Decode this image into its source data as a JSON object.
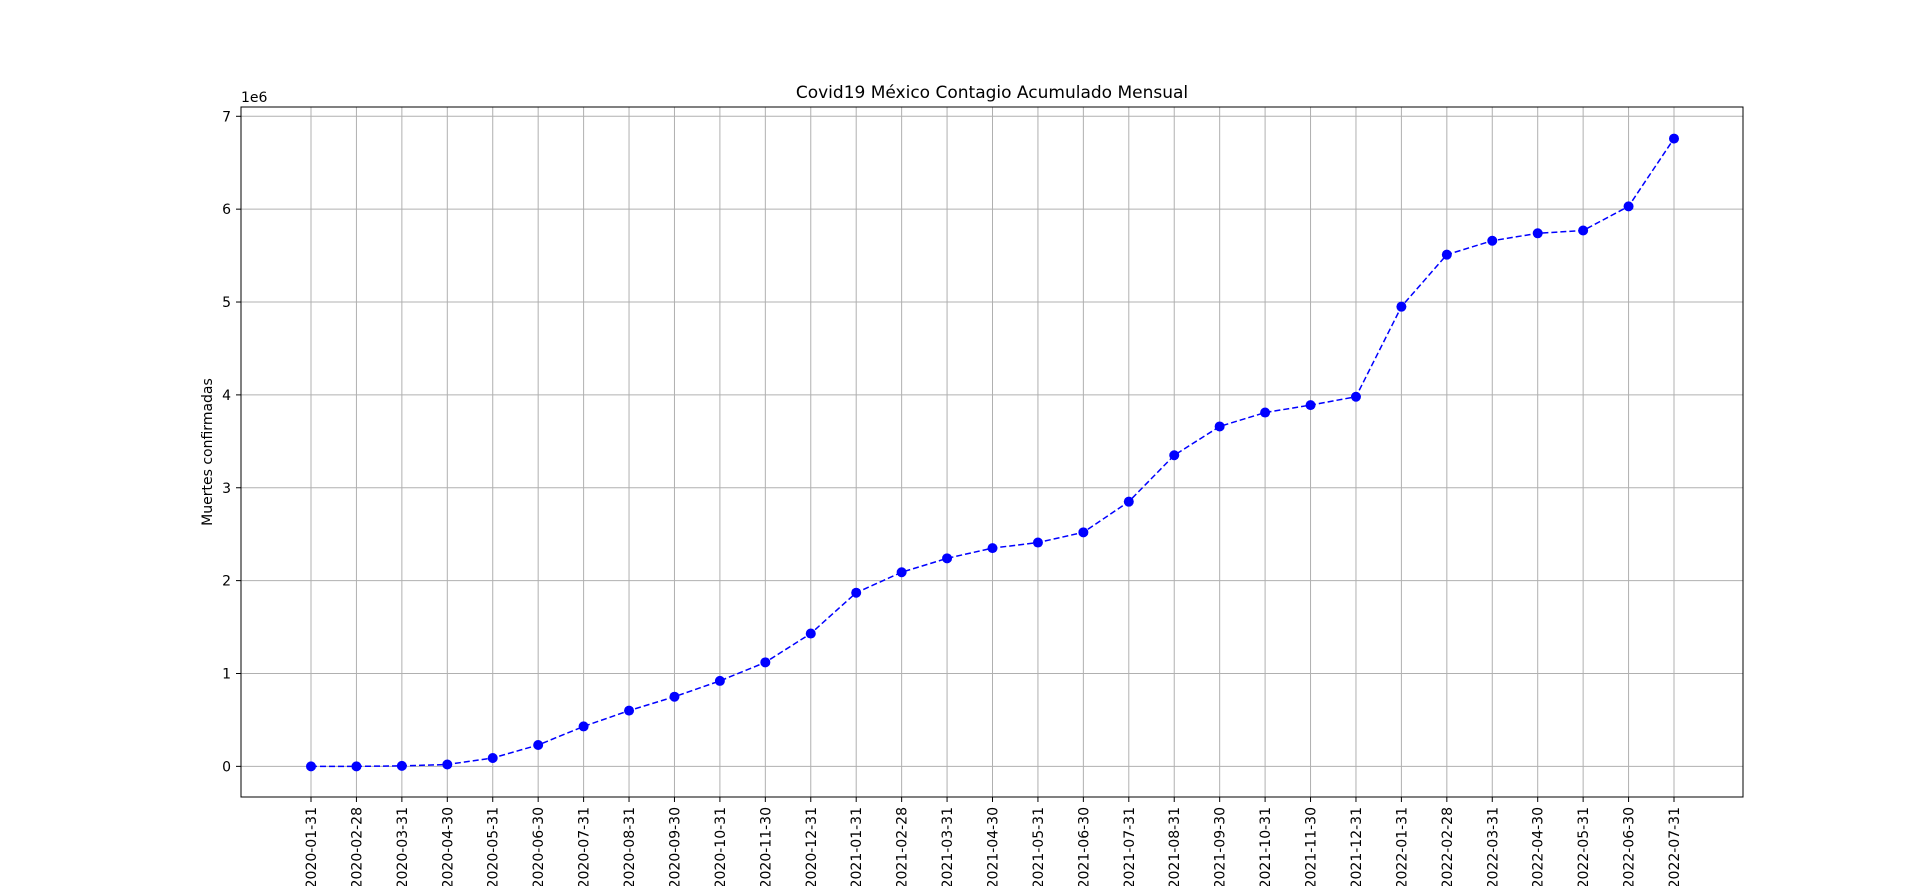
{
  "chart_data": {
    "type": "line",
    "title": "Covid19 México Contagio Acumulado Mensual",
    "xlabel": "",
    "ylabel": "Muertes confirmadas",
    "y_offset_text": "1e6",
    "ylim": [
      -330000,
      7100000
    ],
    "yticks": [
      0,
      1,
      2,
      3,
      4,
      5,
      6,
      7
    ],
    "grid": true,
    "colors": {
      "line": "#0000ff",
      "marker": "#0000ff",
      "grid": "#b0b0b0",
      "axes": "#000000"
    },
    "line_style": "dashed",
    "marker": "circle",
    "x": [
      "2020-01-31",
      "2020-02-28",
      "2020-03-31",
      "2020-04-30",
      "2020-05-31",
      "2020-06-30",
      "2020-07-31",
      "2020-08-31",
      "2020-09-30",
      "2020-10-31",
      "2020-11-30",
      "2020-12-31",
      "2021-01-31",
      "2021-02-28",
      "2021-03-31",
      "2021-04-30",
      "2021-05-31",
      "2021-06-30",
      "2021-07-31",
      "2021-08-31",
      "2021-09-30",
      "2021-10-31",
      "2021-11-30",
      "2021-12-31",
      "2022-01-31",
      "2022-02-28",
      "2022-03-31",
      "2022-04-30",
      "2022-05-31",
      "2022-06-30",
      "2022-07-31"
    ],
    "series": [
      {
        "values": [
          0,
          0,
          5000,
          20000,
          90000,
          230000,
          430000,
          600000,
          750000,
          920000,
          1120000,
          1430000,
          1870000,
          2090000,
          2240000,
          2350000,
          2410000,
          2520000,
          2850000,
          3350000,
          3660000,
          3810000,
          3890000,
          3980000,
          4950000,
          5510000,
          5660000,
          5740000,
          5770000,
          6030000,
          6760000
        ]
      }
    ]
  }
}
